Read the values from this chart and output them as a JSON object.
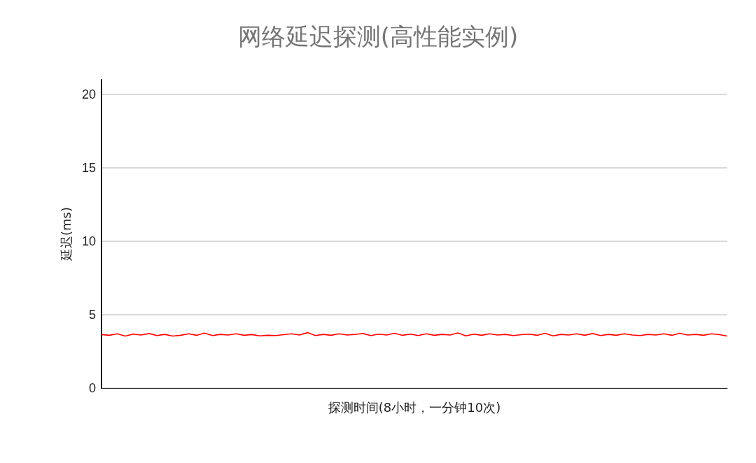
{
  "chart_data": {
    "type": "line",
    "title": "网络延迟探测(高性能实例)",
    "xlabel": "探测时间(8小时，一分钟10次)",
    "ylabel": "延迟(ms)",
    "categories": [
      null,
      null,
      null,
      null,
      null,
      null,
      null,
      null,
      null,
      null,
      null,
      null,
      null,
      null,
      null,
      null,
      null,
      null,
      null,
      null,
      null,
      null,
      null,
      null,
      null,
      null,
      null,
      null,
      null,
      null,
      null,
      null,
      null,
      null,
      null,
      null,
      null,
      null,
      null,
      null,
      null,
      null,
      null,
      null,
      null,
      null,
      null,
      null,
      null,
      null,
      null,
      null,
      null,
      null,
      null,
      null,
      null,
      null,
      null,
      null,
      null,
      null,
      null,
      null,
      null,
      null,
      null,
      null,
      null,
      null,
      null,
      null,
      null,
      null,
      null,
      null,
      null,
      null,
      null,
      null
    ],
    "series": [
      {
        "color": "#ff0000",
        "values": [
          3.65,
          3.6,
          3.7,
          3.55,
          3.68,
          3.62,
          3.72,
          3.58,
          3.66,
          3.55,
          3.6,
          3.7,
          3.6,
          3.75,
          3.58,
          3.66,
          3.62,
          3.7,
          3.6,
          3.65,
          3.56,
          3.6,
          3.58,
          3.64,
          3.7,
          3.62,
          3.78,
          3.58,
          3.66,
          3.6,
          3.7,
          3.62,
          3.66,
          3.72,
          3.58,
          3.68,
          3.62,
          3.74,
          3.6,
          3.68,
          3.58,
          3.7,
          3.6,
          3.66,
          3.62,
          3.76,
          3.56,
          3.68,
          3.6,
          3.7,
          3.62,
          3.66,
          3.58,
          3.64,
          3.68,
          3.6,
          3.74,
          3.56,
          3.66,
          3.62,
          3.7,
          3.6,
          3.72,
          3.58,
          3.66,
          3.6,
          3.7,
          3.62,
          3.58,
          3.66,
          3.62,
          3.7,
          3.6,
          3.74,
          3.62,
          3.66,
          3.6,
          3.7,
          3.64,
          3.55
        ]
      }
    ],
    "ylim": [
      0,
      21
    ],
    "yticks": [
      0,
      5,
      10,
      15,
      20
    ],
    "grid": "y",
    "marker": "none",
    "line_style": "solid"
  }
}
